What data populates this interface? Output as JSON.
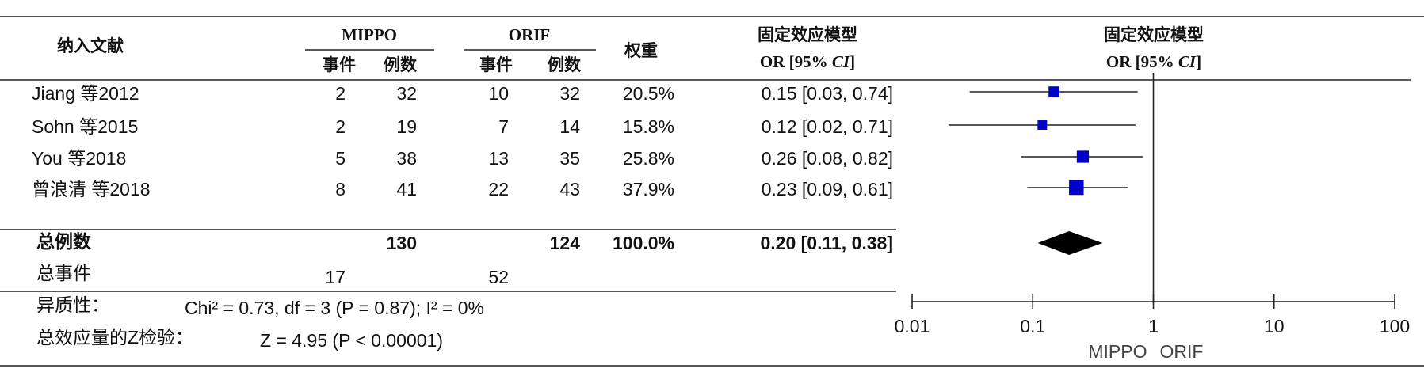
{
  "chart_data": {
    "type": "forest",
    "header": {
      "study": "纳入文献",
      "group1": "MIPPO",
      "group2": "ORIF",
      "events": "事件",
      "total": "例数",
      "weight": "权重",
      "effect_title": "固定效应模型",
      "effect_pre": "OR [95% ",
      "effect_ci": "CI",
      "effect_post": "]"
    },
    "studies": [
      "Jiang 等2012",
      "Sohn 等2015",
      "You 等2018",
      "曾浪清 等2018"
    ],
    "events_mippo": [
      2,
      2,
      5,
      8
    ],
    "total_mippo": [
      32,
      19,
      38,
      41
    ],
    "events_orif": [
      10,
      7,
      13,
      22
    ],
    "total_orif": [
      32,
      14,
      35,
      43
    ],
    "weights": [
      20.5,
      15.8,
      25.8,
      37.9
    ],
    "weight_labels": [
      "20.5%",
      "15.8%",
      "25.8%",
      "37.9%"
    ],
    "or": [
      0.15,
      0.12,
      0.26,
      0.23
    ],
    "ci_low": [
      0.03,
      0.02,
      0.08,
      0.09
    ],
    "ci_high": [
      0.74,
      0.71,
      0.82,
      0.61
    ],
    "or_labels": [
      "0.15 [0.03, 0.74]",
      "0.12 [0.02, 0.71]",
      "0.26 [0.08, 0.82]",
      "0.23 [0.09, 0.61]"
    ],
    "pooled": {
      "label": "总例数",
      "total_mippo": 130,
      "total_orif": 124,
      "weight": 100,
      "weight_label": "100.0%",
      "or": 0.2,
      "ci_low": 0.11,
      "ci_high": 0.38,
      "or_label": "0.20 [0.11, 0.38]"
    },
    "total_events": {
      "label": "总事件",
      "mippo": 17,
      "orif": 52
    },
    "heterogeneity": {
      "label": "异质性：",
      "text": "Chi² = 0.73, df = 3 (P = 0.87); I² = 0%"
    },
    "z_test": {
      "label": "总效应量的Z检验：",
      "text": "Z = 4.95 (P < 0.00001)"
    },
    "log_x": true,
    "xlim": [
      0.01,
      100
    ],
    "xticks": [
      0.01,
      0.1,
      1,
      10,
      100
    ],
    "ref_line": 1,
    "x_left_label": "MIPPO",
    "x_right_label": "ORIF",
    "marker_color": "#0000cc",
    "pooled_color": "#000000"
  }
}
